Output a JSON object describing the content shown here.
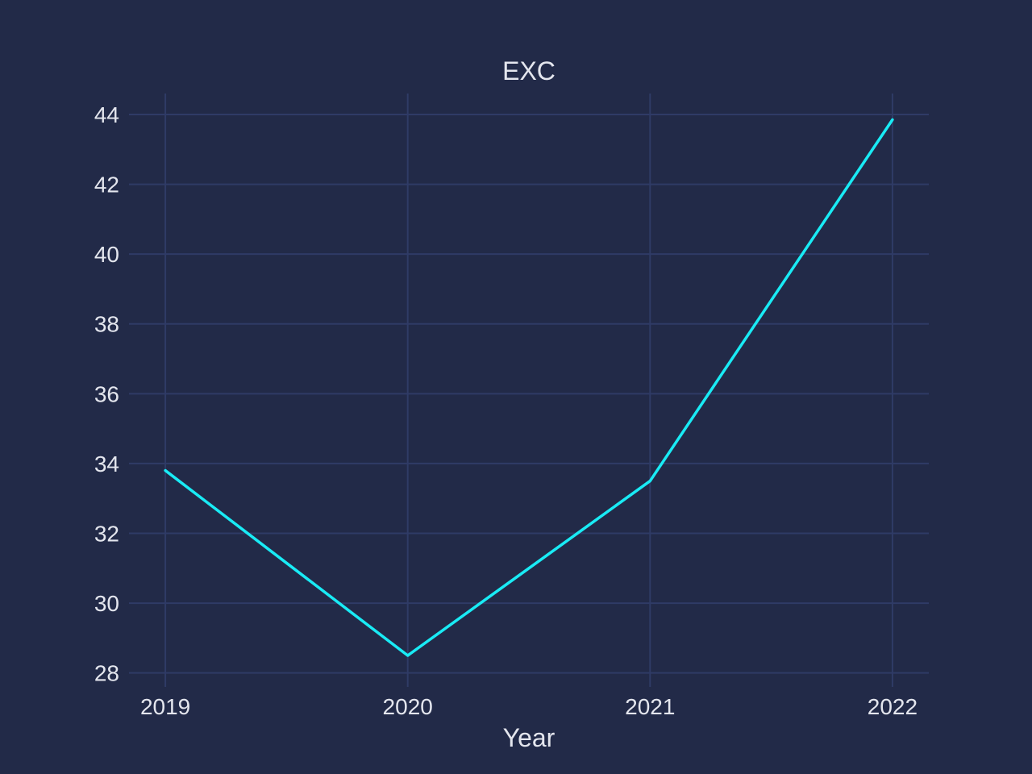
{
  "chart_data": {
    "type": "line",
    "title": "EXC",
    "xlabel": "Year",
    "ylabel": "",
    "x": [
      "2019",
      "2020",
      "2021",
      "2022"
    ],
    "series": [
      {
        "values": [
          33.8,
          28.5,
          33.5,
          43.85
        ]
      }
    ],
    "xlim": [
      2018.85,
      2022.15
    ],
    "ylim": [
      27.6,
      44.6
    ],
    "yticks": [
      28,
      30,
      32,
      34,
      36,
      38,
      40,
      42,
      44
    ],
    "grid": true,
    "legend": "none",
    "colors": {
      "background": "#222a48",
      "grid": "#2f3b66",
      "line": "#19ebf5",
      "text": "#e4e6ee"
    }
  }
}
